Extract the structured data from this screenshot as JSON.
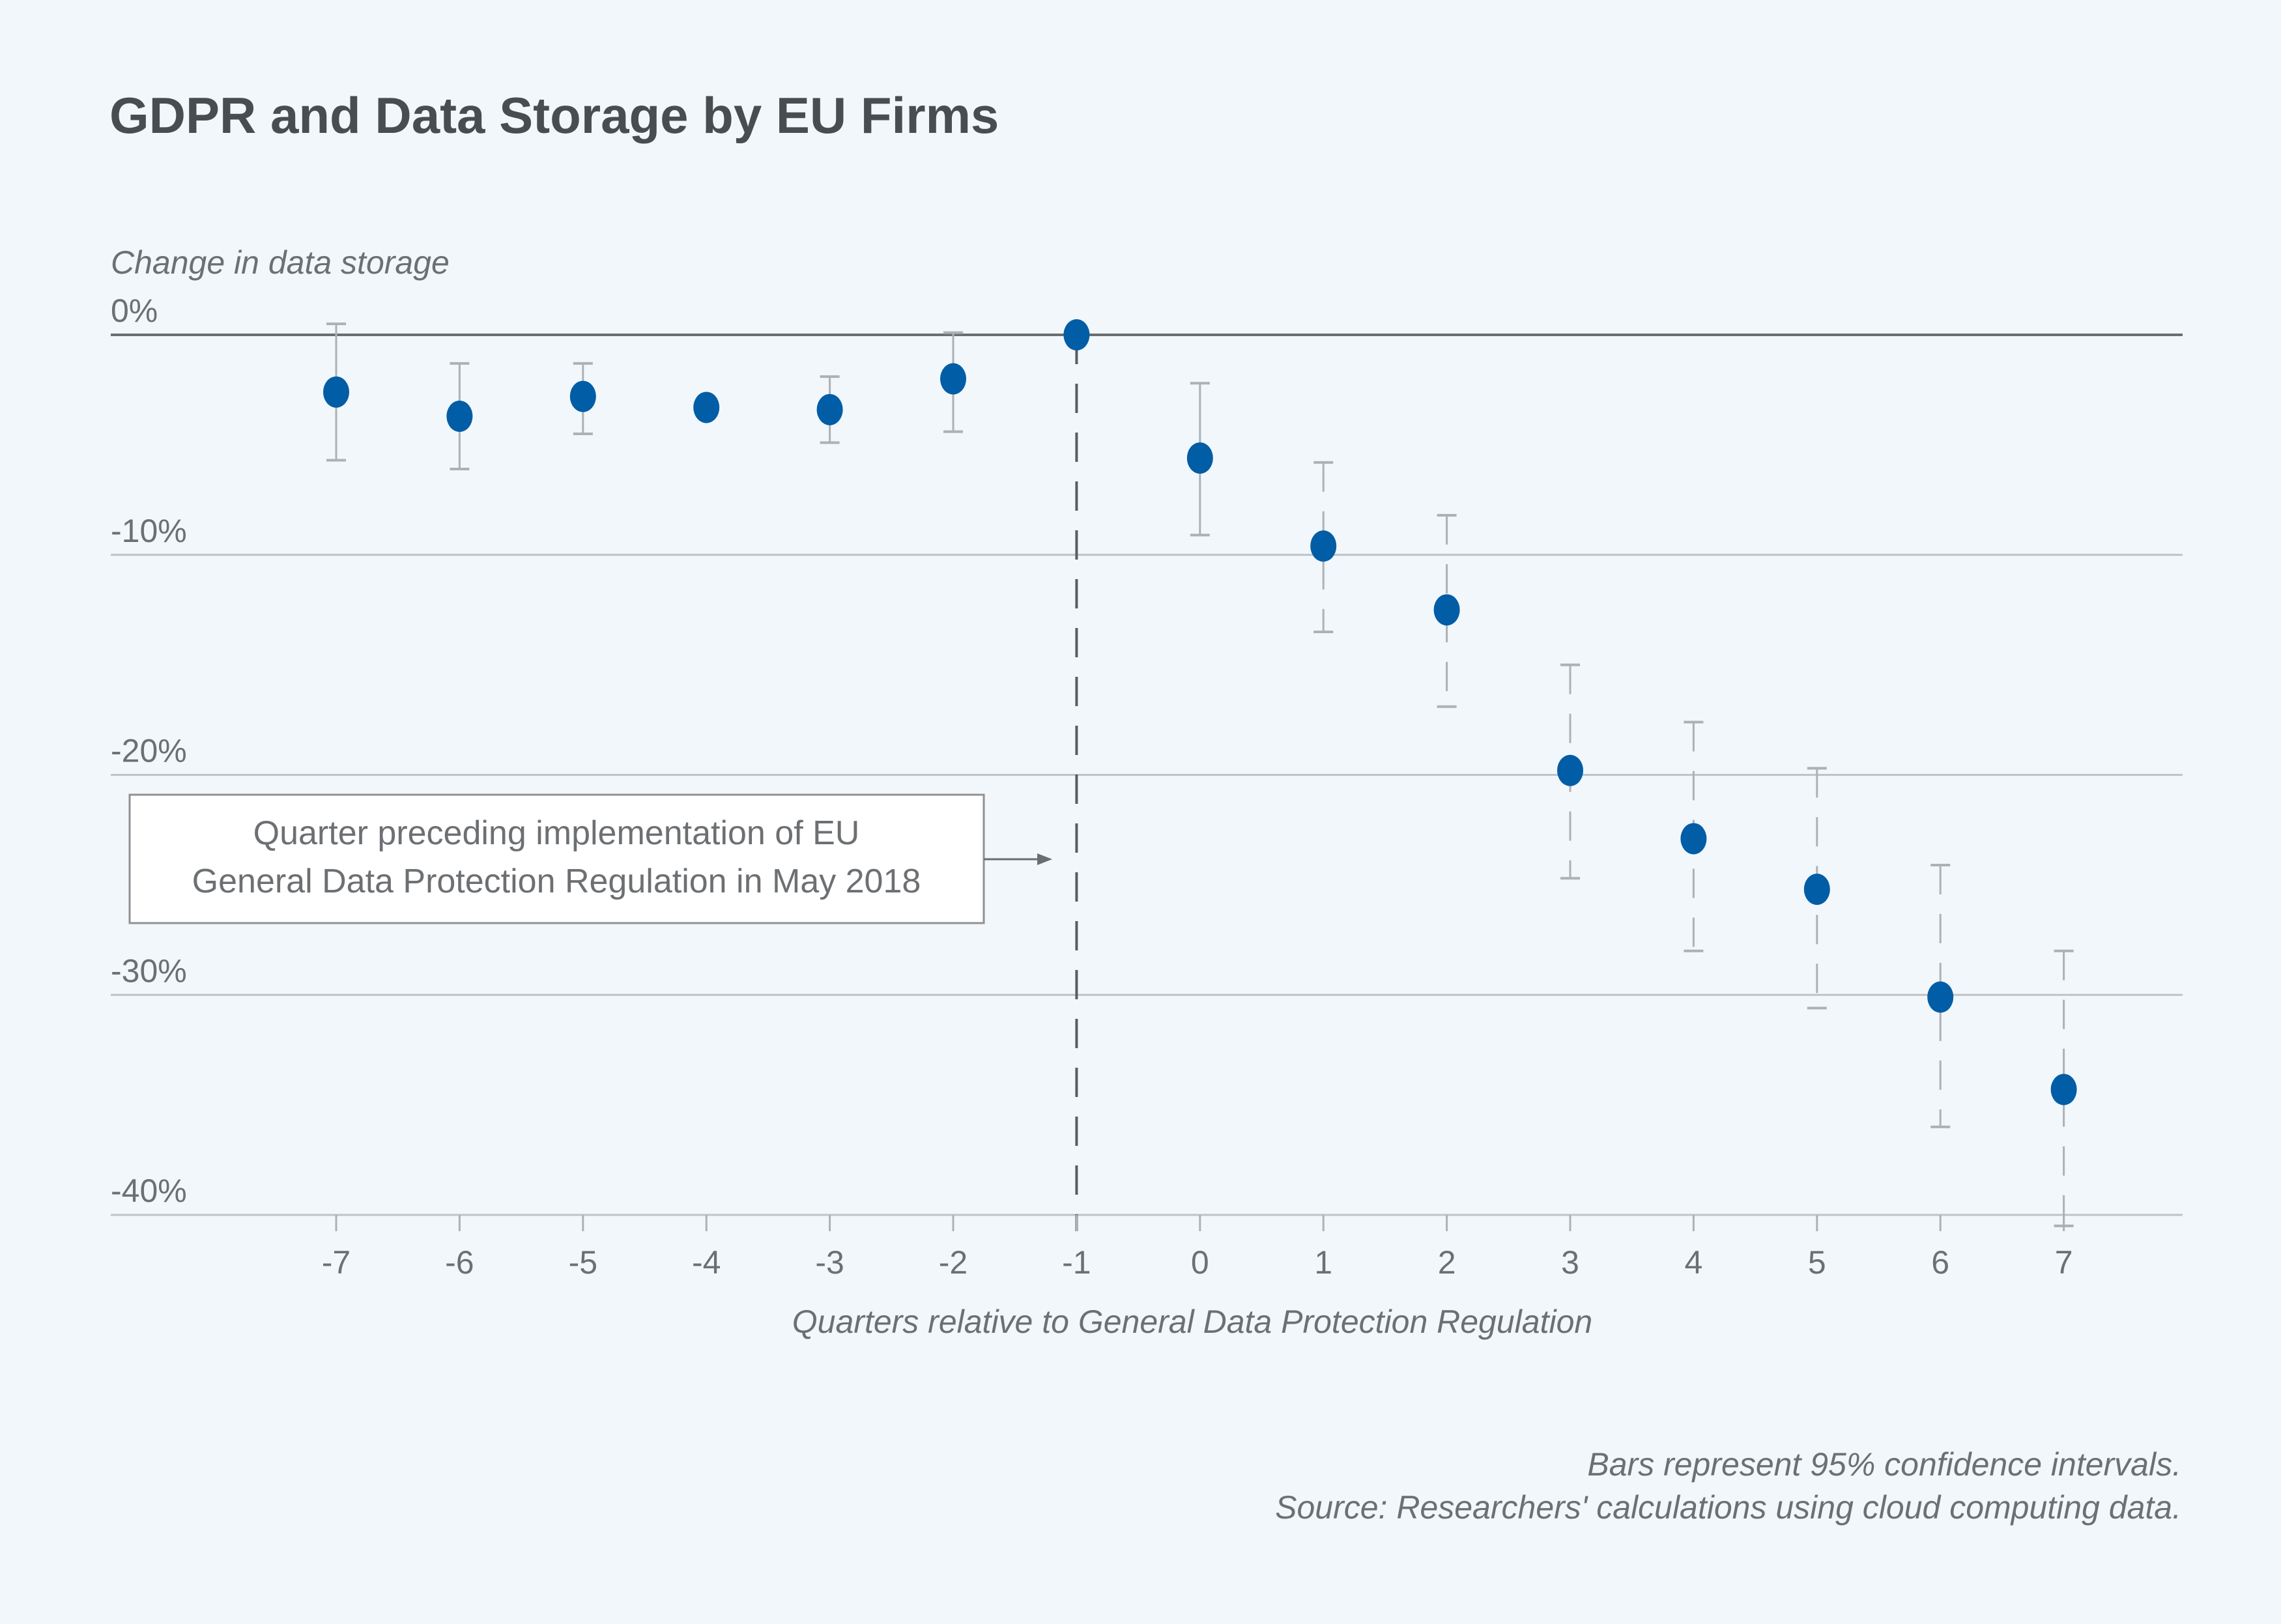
{
  "chart_data": {
    "type": "scatter",
    "title": "GDPR and Data Storage by EU Firms",
    "ylabel": "Change in data storage",
    "xlabel": "Quarters relative to General Data Protection Regulation",
    "ylim": [
      -40,
      0
    ],
    "yticks": [
      0,
      -10,
      -20,
      -30,
      -40
    ],
    "ytick_labels": [
      "0%",
      "-10%",
      "-20%",
      "-30%",
      "-40%"
    ],
    "x": [
      -7,
      -6,
      -5,
      -4,
      -3,
      -2,
      -1,
      0,
      1,
      2,
      3,
      4,
      5,
      6,
      7
    ],
    "xtick_labels": [
      "-7",
      "-6",
      "-5",
      "-4",
      "-3",
      "-2",
      "-1",
      "0",
      "1",
      "2",
      "3",
      "4",
      "5",
      "6",
      "7"
    ],
    "values": [
      -2.6,
      -3.7,
      -2.8,
      -3.3,
      -3.4,
      -2.0,
      0,
      -5.6,
      -9.6,
      -12.5,
      -19.8,
      -22.9,
      -25.2,
      -30.1,
      -34.3
    ],
    "ci_upper": [
      0.5,
      -1.3,
      -1.3,
      -3.0,
      -1.9,
      0.1,
      null,
      -2.2,
      -5.8,
      -8.2,
      -15.0,
      -17.6,
      -19.7,
      -24.1,
      -28.0
    ],
    "ci_lower": [
      -5.7,
      -6.1,
      -4.5,
      -3.6,
      -4.9,
      -4.4,
      null,
      -9.1,
      -13.5,
      -16.9,
      -24.7,
      -28.0,
      -30.6,
      -36.0,
      -40.5
    ],
    "annotation": [
      "Quarter preceding implementation of EU",
      "General Data Protection Regulation in May 2018"
    ],
    "reference_line_x": -1,
    "grid": "horizontal",
    "colors": {
      "point": "#005da6",
      "ci": "#aeb1b4",
      "grid": "#c0c3c6",
      "zero_line": "#6b6e71",
      "background": "#f2f7fb"
    }
  },
  "notes": [
    "Bars represent 95% confidence intervals.",
    "Source: Researchers' calculations using cloud computing data."
  ]
}
